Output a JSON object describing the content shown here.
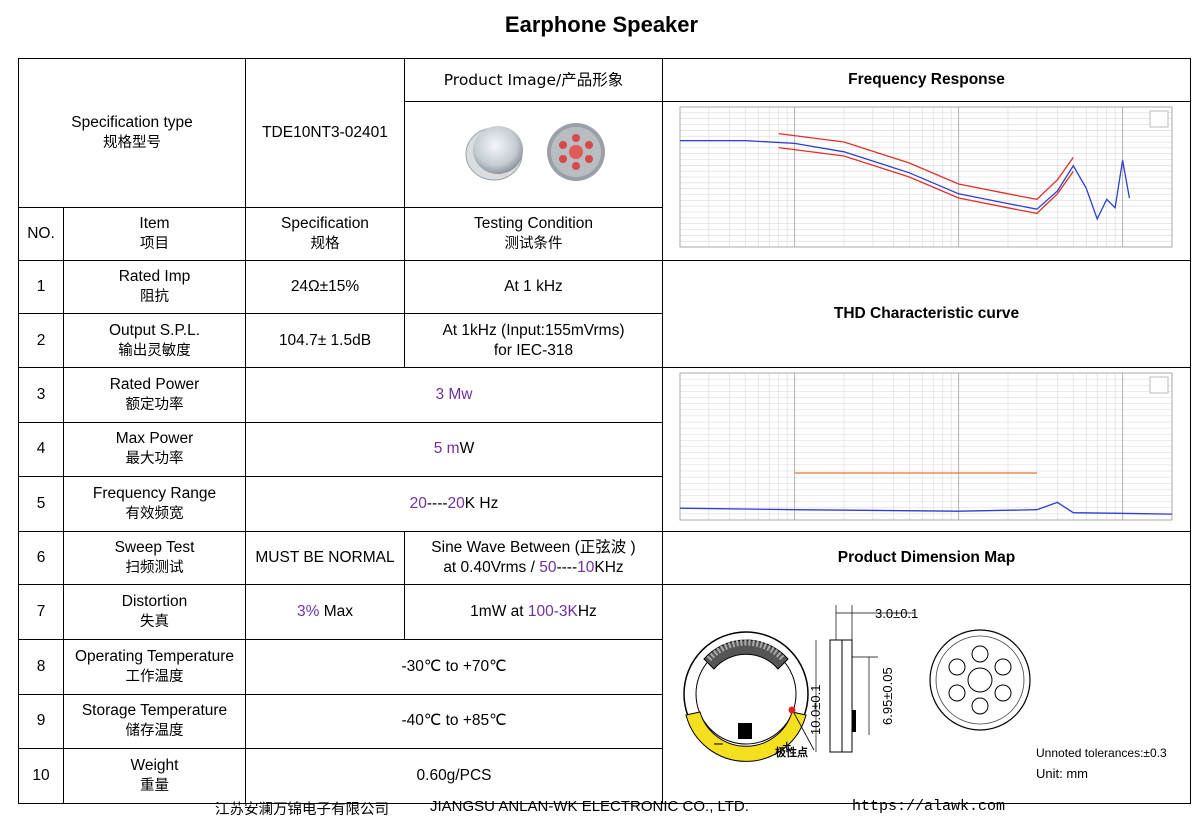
{
  "title": "Earphone Speaker",
  "spec_type": {
    "en": "Specification type",
    "cn": "规格型号",
    "value": "TDE10NT3-02401"
  },
  "product_image_label": "Product Image/产品形象",
  "headers": {
    "no": "NO.",
    "item_en": "Item",
    "item_cn": "项目",
    "spec_en": "Specification",
    "spec_cn": "规格",
    "cond_en": "Testing Condition",
    "cond_cn": "测试条件"
  },
  "rows": [
    {
      "no": "1",
      "en": "Rated Imp",
      "cn": "阻抗",
      "spec": "24Ω±15%",
      "cond": "At 1 kHz"
    },
    {
      "no": "2",
      "en": "Output S.P.L.",
      "cn": "输出灵敏度",
      "spec": "104.7± 1.5dB",
      "cond1": "At 1kHz (Input:155mVrms)",
      "cond2": "for IEC-318"
    },
    {
      "no": "3",
      "en": "Rated Power",
      "cn": "额定功率",
      "value": "3 Mw"
    },
    {
      "no": "4",
      "en": "Max Power",
      "cn": "最大功率",
      "value_a": "5 m",
      "value_b": "W"
    },
    {
      "no": "5",
      "en": "Frequency Range",
      "cn": "有效频宽",
      "value_a": "20",
      "value_b": "----",
      "value_c": "20",
      "value_d": "K Hz"
    },
    {
      "no": "6",
      "en": "Sweep Test",
      "cn": "扫频测试",
      "spec": "MUST BE NORMAL",
      "cond1": "Sine  Wave  Between (正弦波 )",
      "cond2a": "at 0.40Vrms / ",
      "cond2b": "50",
      "cond2c": "----",
      "cond2d": "10",
      "cond2e": "KHz"
    },
    {
      "no": "7",
      "en": "Distortion",
      "cn": "失真",
      "spec_a": "3%",
      "spec_b": " Max",
      "cond_a": "1mW at ",
      "cond_b": "100-3K",
      "cond_c": "Hz"
    },
    {
      "no": "8",
      "en": "Operating Temperature",
      "cn": "工作温度",
      "value": "-30℃ to +70℃"
    },
    {
      "no": "9",
      "en": "Storage Temperature",
      "cn": "储存温度",
      "value": "-40℃ to +85℃"
    },
    {
      "no": "10",
      "en": "Weight",
      "cn": "重量",
      "value": "0.60g/PCS"
    }
  ],
  "sections": {
    "freq_response": "Frequency    Response",
    "thd": "THD Characteristic curve",
    "dimension": "Product   Dimension   Map"
  },
  "dimension": {
    "width": "3.0±0.1",
    "height": "10.0±0.1",
    "inner": "6.95±0.05",
    "polarity": "极性点",
    "minus": "–",
    "plus": "+",
    "tolerance": "Unnoted tolerances:±0.3",
    "unit": "Unit:  mm"
  },
  "colors": {
    "accent": "#7030a0",
    "curve_blue": "#2b3fd0",
    "curve_red": "#e0302a",
    "thd_orange": "#f07030"
  },
  "chart_data": [
    {
      "type": "line",
      "title": "Frequency    Response",
      "x_scale": "log",
      "series": [
        {
          "values": [
            [
              20,
              0.24
            ],
            [
              50,
              0.24
            ],
            [
              100,
              0.26
            ],
            [
              200,
              0.32
            ],
            [
              500,
              0.47
            ],
            [
              1000,
              0.62
            ],
            [
              2000,
              0.69
            ],
            [
              3000,
              0.73
            ],
            [
              4000,
              0.6
            ],
            [
              5000,
              0.42
            ],
            [
              6000,
              0.58
            ],
            [
              7000,
              0.8
            ],
            [
              8000,
              0.66
            ],
            [
              9000,
              0.72
            ],
            [
              10000,
              0.38
            ],
            [
              11000,
              0.65
            ]
          ]
        },
        {
          "values": [
            [
              80,
              0.19
            ],
            [
              200,
              0.25
            ],
            [
              500,
              0.4
            ],
            [
              1000,
              0.55
            ],
            [
              2000,
              0.62
            ],
            [
              3000,
              0.66
            ],
            [
              4000,
              0.52
            ],
            [
              5000,
              0.36
            ]
          ]
        },
        {
          "values": [
            [
              80,
              0.29
            ],
            [
              200,
              0.35
            ],
            [
              500,
              0.5
            ],
            [
              1000,
              0.65
            ],
            [
              2000,
              0.72
            ],
            [
              3000,
              0.76
            ],
            [
              4000,
              0.62
            ],
            [
              5000,
              0.46
            ]
          ]
        }
      ]
    },
    {
      "type": "line",
      "title": "THD Characteristic curve",
      "x_scale": "log",
      "series": [
        {
          "values": [
            [
              20,
              0.92
            ],
            [
              100,
              0.93
            ],
            [
              1000,
              0.94
            ],
            [
              3000,
              0.93
            ],
            [
              4000,
              0.88
            ],
            [
              5000,
              0.95
            ],
            [
              20000,
              0.96
            ]
          ]
        },
        {
          "values": [
            [
              100,
              0.68
            ],
            [
              3000,
              0.68
            ]
          ]
        }
      ]
    }
  ],
  "footer": {
    "company_cn": "江苏安澜万锦电子有限公司",
    "company_en": "JIANGSU ANLAN-WK ELECTRONIC CO., LTD.",
    "url": "https://alawk.com"
  }
}
